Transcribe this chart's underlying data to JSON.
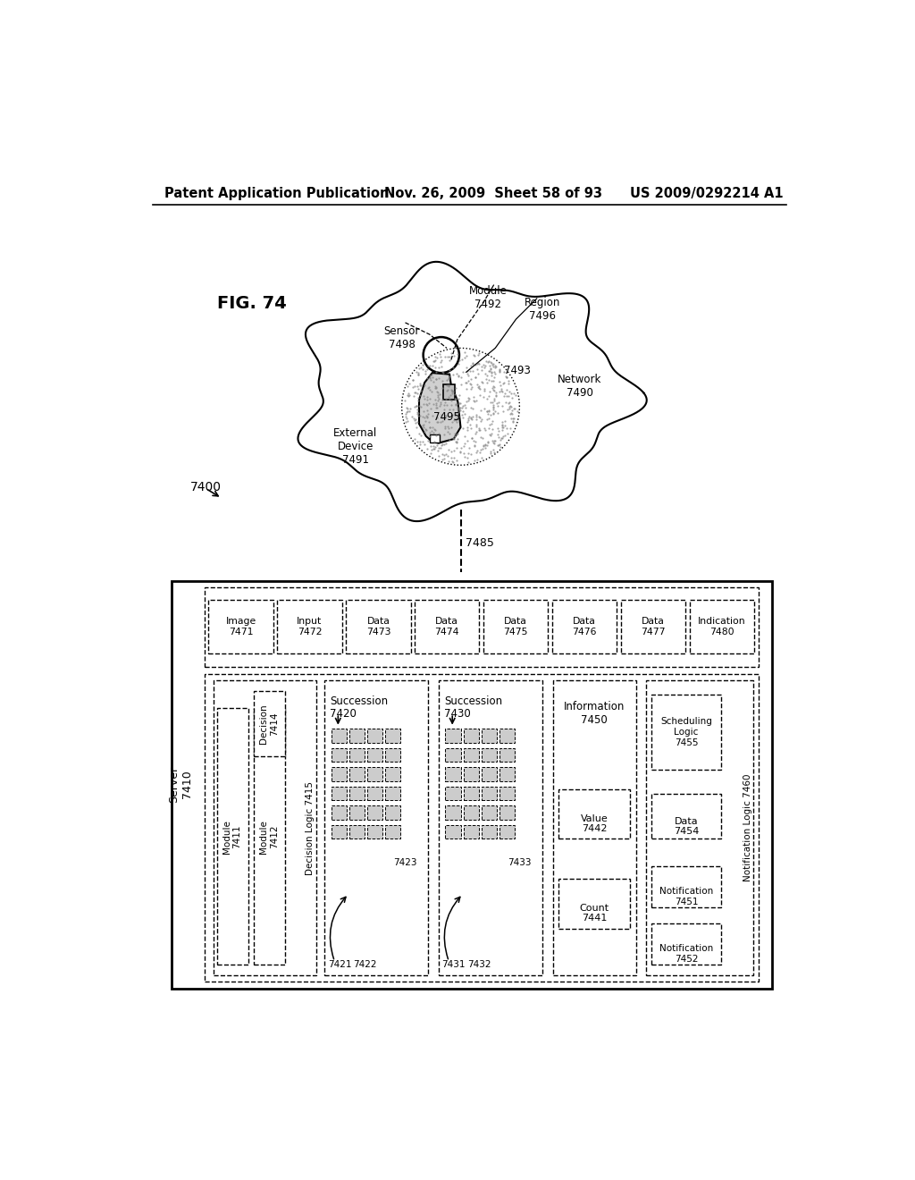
{
  "header_left": "Patent Application Publication",
  "header_mid": "Nov. 26, 2009  Sheet 58 of 93",
  "header_right": "US 2009/0292214 A1",
  "fig_label": "FIG. 74",
  "diagram_label": "7400",
  "background": "#ffffff",
  "boxes_top": [
    "Image\n7471",
    "Input\n7472",
    "Data\n7473",
    "Data\n7474",
    "Data\n7475",
    "Data\n7476",
    "Data\n7477",
    "Indication\n7480"
  ]
}
